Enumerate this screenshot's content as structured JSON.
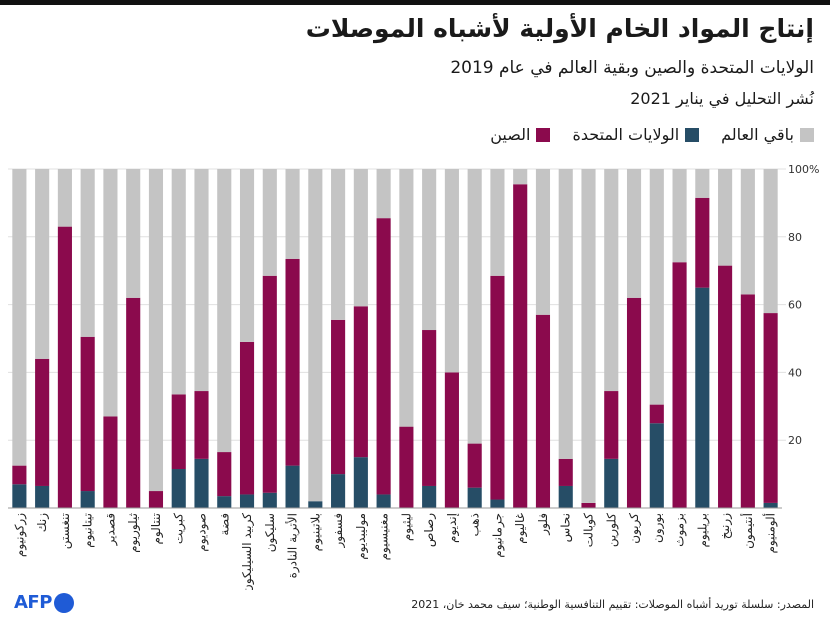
{
  "header": {
    "title": "إنتاج المواد الخام الأولية لأشباه الموصلات",
    "subtitle": "الولايات المتحدة والصين وبقية العالم في عام 2019",
    "note": "نُشر التحليل في يناير 2021"
  },
  "source": "المصدر: سلسلة توريد أشباه الموصلات: تقييم التنافسية الوطنية؛ سيف محمد خان، 2021",
  "logo": {
    "text": "AFP"
  },
  "colors": {
    "china": "#8b0a4d",
    "usa": "#264d66",
    "rest": "#c4c4c4",
    "grid": "#e0e0e0"
  },
  "chart_data": {
    "type": "bar",
    "stacked": true,
    "ylim": [
      0,
      100
    ],
    "yticks": [
      20,
      40,
      60,
      80,
      100
    ],
    "ytick_labels": [
      "20",
      "40",
      "60",
      "80",
      "100%"
    ],
    "legend": [
      {
        "name": "الصين",
        "color": "#8b0a4d"
      },
      {
        "name": "الولايات المتحدة",
        "color": "#264d66"
      },
      {
        "name": "باقي العالم",
        "color": "#c4c4c4"
      }
    ],
    "categories": [
      "زركونيوم",
      "زنك",
      "تنغستن",
      "تيتانيوم",
      "قصدير",
      "ثيلوريوم",
      "تنتالوم",
      "كبريت",
      "صوديوم",
      "فضة",
      "كربيد السيليكون",
      "سليكون",
      "الأتربة النادرة",
      "بلاتينيوم",
      "فسفور",
      "موليبديوم",
      "مغنيسيوم",
      "ليثيوم",
      "رصاص",
      "إنديوم",
      "ذهب",
      "جرمانيوم",
      "غاليوم",
      "فلور",
      "نحاس",
      "كوبالت",
      "كلورين",
      "كربون",
      "بورون",
      "بزموث",
      "بريليوم",
      "زرنيخ",
      "أنتيمون",
      "ألومنيوم"
    ],
    "series": [
      {
        "name": "الولايات المتحدة",
        "values": [
          7,
          6.5,
          0,
          5,
          0,
          0,
          0,
          11.5,
          14.5,
          3.5,
          4,
          4.5,
          12.5,
          2,
          10,
          15,
          4,
          0,
          6.5,
          0,
          6,
          2.5,
          0,
          0,
          6.5,
          0,
          14.5,
          0,
          25,
          0,
          65,
          0,
          0,
          1.5
        ]
      },
      {
        "name": "الصين",
        "values": [
          5.5,
          37.5,
          83,
          45.5,
          27,
          62,
          5,
          22,
          20,
          13,
          45,
          64,
          61,
          0,
          45.5,
          44.5,
          81.5,
          24,
          46,
          40,
          13,
          66,
          95.5,
          57,
          8,
          1.5,
          20,
          62,
          5.5,
          72.5,
          26.5,
          71.5,
          63,
          56
        ]
      },
      {
        "name": "باقي العالم",
        "values": [
          87.5,
          56,
          17,
          49.5,
          73,
          38,
          95,
          66.5,
          65.5,
          83.5,
          51,
          31.5,
          26.5,
          98,
          44.5,
          40.5,
          14.5,
          76,
          47.5,
          60,
          81,
          31.5,
          4.5,
          43,
          85.5,
          98.5,
          65.5,
          38,
          69.5,
          27.5,
          8.5,
          28.5,
          37,
          42.5
        ]
      }
    ]
  }
}
